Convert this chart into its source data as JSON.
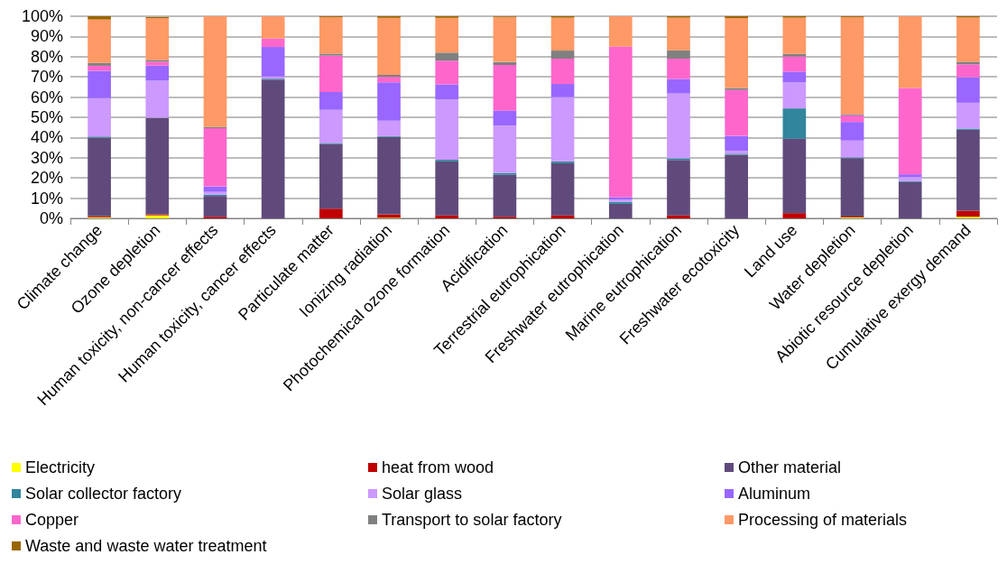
{
  "chart_data": {
    "type": "bar",
    "stacked": true,
    "categories": [
      "Climate change",
      "Ozone depletion",
      "Human toxicity, non-cancer effects",
      "Human toxicity, cancer effects",
      "Particulate matter",
      "Ionizing radiation",
      "Photochemical ozone formation",
      "Acidification",
      "Terrestrial eutrophication",
      "Freshwater eutrophication",
      "Marine eutrophication",
      "Freshwater ecotoxicity",
      "Land use",
      "Water depletion",
      "Abiotic resource depletion",
      "Cumulative exergy demand"
    ],
    "ylim": [
      0,
      100
    ],
    "yticks": [
      {
        "value": 0,
        "label": "0%"
      },
      {
        "value": 10,
        "label": "10%"
      },
      {
        "value": 20,
        "label": "20%"
      },
      {
        "value": 30,
        "label": "30%"
      },
      {
        "value": 40,
        "label": "40%"
      },
      {
        "value": 50,
        "label": "50%"
      },
      {
        "value": 60,
        "label": "60%"
      },
      {
        "value": 70,
        "label": "70%"
      },
      {
        "value": 80,
        "label": "80%"
      },
      {
        "value": 90,
        "label": "90%"
      },
      {
        "value": 100,
        "label": "100%"
      }
    ],
    "grid": "y",
    "legend": "bottom",
    "series": [
      {
        "name": "Electricity",
        "color": "#ffff00",
        "values": [
          0.5,
          1.5,
          0,
          0,
          0,
          0.3,
          0,
          0,
          0,
          0,
          0,
          0,
          0,
          0.5,
          0,
          0.8
        ]
      },
      {
        "name": "heat from wood",
        "color": "#c00000",
        "values": [
          0.5,
          0.5,
          0.8,
          0,
          4.8,
          1.7,
          1.5,
          0.8,
          1.5,
          0,
          1.5,
          0,
          2.6,
          0.4,
          0,
          3
        ]
      },
      {
        "name": "Other material",
        "color": "#604a7b",
        "values": [
          39,
          47.8,
          10.3,
          68.6,
          32,
          38.3,
          26.7,
          20.8,
          25.8,
          7.2,
          27.4,
          31.5,
          36.8,
          28.9,
          17.9,
          40
        ]
      },
      {
        "name": "Solar collector factory",
        "color": "#31859c",
        "values": [
          0.5,
          null,
          0.6,
          0.5,
          0.5,
          0.4,
          0.8,
          0.9,
          0.9,
          1,
          0.8,
          0.5,
          15,
          0.4,
          0.5,
          0.6
        ]
      },
      {
        "name": "Solar glass",
        "color": "#cc99ff",
        "values": [
          19,
          18.3,
          1.4,
          1.1,
          16.4,
          7.6,
          29.8,
          23.4,
          31.8,
          1,
          32.1,
          1.5,
          12.9,
          8.3,
          2.1,
          12.8
        ]
      },
      {
        "name": "Aluminum",
        "color": "#9966ff",
        "values": [
          13.5,
          7.5,
          2.7,
          14.6,
          8.8,
          19,
          7.5,
          7.5,
          6.5,
          1.3,
          7.2,
          7.3,
          5.3,
          9.2,
          1.3,
          12.6
        ]
      },
      {
        "name": "Copper",
        "color": "#ff66cc",
        "values": [
          2.5,
          1.9,
          28.8,
          4.2,
          18,
          2.7,
          11.7,
          22.5,
          12.5,
          74.5,
          10,
          22.7,
          7.5,
          3.3,
          42.7,
          6.4
        ]
      },
      {
        "name": "Transport to solar factory",
        "color": "#808080",
        "values": [
          1.4,
          0.9,
          0.6,
          0,
          1,
          1,
          4,
          1.5,
          4,
          0,
          4.2,
          1,
          1.3,
          0.6,
          0,
          1.3
        ]
      },
      {
        "name": "Processing of materials",
        "color": "#ff9966",
        "values": [
          21.5,
          20.7,
          54.8,
          11,
          18.1,
          28.2,
          17.2,
          22.3,
          16.3,
          15,
          16.1,
          34.6,
          17.9,
          48,
          35.5,
          21.9
        ]
      },
      {
        "name": "Waste and waste water treatment",
        "color": "#996600",
        "values": [
          1.6,
          0.5,
          0,
          0,
          0.4,
          0.8,
          0.8,
          0.3,
          0.7,
          0,
          0.7,
          0.9,
          0.7,
          0.4,
          0,
          0.6
        ]
      }
    ]
  }
}
